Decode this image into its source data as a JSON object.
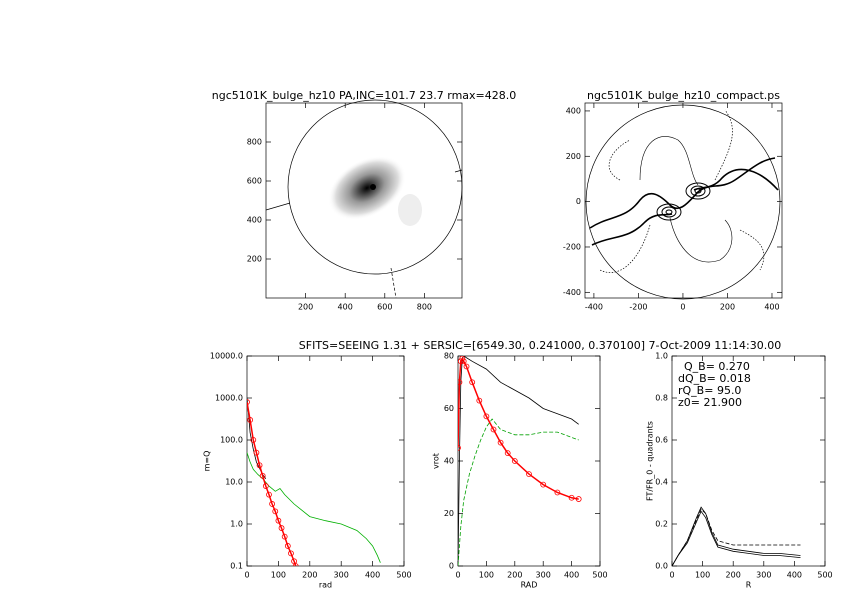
{
  "header": {
    "text": "SFITS=SEEING 1.31 + SERSIC=[6549.30, 0.241000, 0.370100]   7-Oct-2009 11:14:30.00"
  },
  "chart_data": [
    {
      "type": "image",
      "title": "ngc5101K_bulge_hz10 PA,INC=101.7 23.7 rmax=428.0",
      "xlim": [
        0,
        990
      ],
      "ylim": [
        0,
        1000
      ],
      "xticks": [
        200,
        400,
        600,
        800
      ],
      "yticks": [
        200,
        400,
        600,
        800
      ]
    },
    {
      "type": "contour",
      "title": "ngc5101K_bulge_hz10_compact.ps",
      "xlim": [
        -440,
        445
      ],
      "ylim": [
        -425,
        435
      ],
      "xticks": [
        -400,
        -200,
        0,
        200,
        400
      ],
      "yticks": [
        -400,
        -200,
        0,
        200,
        400
      ]
    },
    {
      "type": "line",
      "xlabel": "rad",
      "ylabel": "m=Q",
      "log_y": true,
      "xlim": [
        0,
        500
      ],
      "ylim": [
        0.1,
        10000
      ],
      "xticks": [
        0,
        100,
        200,
        300,
        400,
        500
      ],
      "yticks": [
        0.1,
        {
          "value": 1,
          "label": "1.0"
        },
        {
          "value": 10,
          "label": "10.0"
        },
        {
          "value": 100,
          "label": "100.0"
        },
        {
          "value": 1000,
          "label": "1000.0"
        },
        {
          "value": 10000,
          "label": "10000.0"
        }
      ],
      "series": [
        {
          "color": "#000000",
          "x": [
            0,
            5,
            10,
            20,
            30,
            50,
            60
          ],
          "values": [
            1000,
            400,
            150,
            60,
            30,
            15,
            12
          ]
        },
        {
          "color": "#00b000",
          "x": [
            0,
            10,
            20,
            35,
            50,
            70,
            90,
            105,
            120,
            150,
            200,
            250,
            300,
            350,
            380,
            400,
            415,
            425
          ],
          "values": [
            50,
            30,
            20,
            15,
            12,
            8,
            6,
            7,
            5,
            3,
            1.5,
            1.2,
            1.0,
            0.7,
            0.45,
            0.3,
            0.18,
            0.12
          ]
        },
        {
          "color": "#ff0000",
          "marker": "circle",
          "x": [
            0,
            10,
            20,
            30,
            40,
            50,
            60,
            70,
            80,
            90,
            100,
            110,
            120,
            130,
            140,
            150,
            155
          ],
          "values": [
            800,
            300,
            100,
            50,
            25,
            14,
            8,
            5,
            3,
            2,
            1.2,
            0.8,
            0.5,
            0.3,
            0.2,
            0.13,
            0.1
          ]
        }
      ]
    },
    {
      "type": "line",
      "xlabel": "RAD",
      "ylabel": "vrot",
      "xlim": [
        0,
        500
      ],
      "ylim": [
        0,
        80
      ],
      "xticks": [
        0,
        100,
        200,
        300,
        400,
        500
      ],
      "yticks": [
        0,
        20,
        40,
        60,
        80
      ],
      "series": [
        {
          "color": "#000000",
          "x": [
            0,
            5,
            10,
            15,
            20,
            50,
            100,
            150,
            200,
            250,
            300,
            350,
            400,
            425
          ],
          "values": [
            0,
            40,
            70,
            79,
            80,
            78,
            75,
            70,
            67,
            64,
            60,
            58,
            56,
            54
          ]
        },
        {
          "color": "#00a000",
          "dash": "dashed",
          "x": [
            0,
            10,
            20,
            40,
            60,
            80,
            100,
            120,
            150,
            200,
            250,
            300,
            350,
            400,
            425
          ],
          "values": [
            0,
            15,
            25,
            35,
            42,
            48,
            53,
            56,
            52,
            50,
            50,
            51,
            51,
            49,
            48
          ]
        },
        {
          "color": "#ff0000",
          "marker": "circle",
          "x": [
            0,
            5,
            10,
            15,
            20,
            30,
            50,
            75,
            100,
            125,
            150,
            175,
            200,
            250,
            300,
            350,
            400,
            425
          ],
          "values": [
            45,
            70,
            78,
            79,
            78,
            76,
            70,
            63,
            57,
            52,
            47,
            43,
            40,
            35,
            31,
            28,
            26,
            25.5
          ]
        }
      ]
    },
    {
      "type": "line",
      "xlabel": "R",
      "ylabel": "FT/FR_0 - quadrants",
      "xlim": [
        0,
        500
      ],
      "ylim": [
        0,
        1
      ],
      "xticks": [
        0,
        100,
        200,
        300,
        400,
        500
      ],
      "yticks": [
        {
          "value": 0,
          "label": "0.0"
        },
        0.2,
        0.4,
        0.6,
        0.8,
        {
          "value": 1,
          "label": "1.0"
        }
      ],
      "annotations": [
        "Q_B= 0.270",
        "dQ_B= 0.018",
        "rQ_B= 95.0",
        "z0= 21.900"
      ],
      "series": [
        {
          "color": "#000000",
          "x": [
            0,
            20,
            50,
            80,
            95,
            110,
            130,
            150,
            200,
            250,
            300,
            350,
            420
          ],
          "values": [
            0,
            0.05,
            0.12,
            0.23,
            0.28,
            0.25,
            0.16,
            0.1,
            0.08,
            0.07,
            0.06,
            0.06,
            0.05
          ]
        },
        {
          "color": "#000000",
          "x": [
            0,
            20,
            50,
            80,
            95,
            110,
            130,
            150,
            200,
            250,
            300,
            350,
            420
          ],
          "values": [
            0,
            0.05,
            0.11,
            0.21,
            0.26,
            0.23,
            0.15,
            0.09,
            0.07,
            0.06,
            0.05,
            0.05,
            0.04
          ]
        },
        {
          "color": "#000000",
          "dash": "dashed",
          "x": [
            0,
            20,
            50,
            80,
            95,
            110,
            130,
            150,
            200,
            250,
            300,
            350,
            420
          ],
          "values": [
            0,
            0.05,
            0.12,
            0.22,
            0.27,
            0.25,
            0.17,
            0.12,
            0.1,
            0.1,
            0.1,
            0.1,
            0.1
          ]
        }
      ]
    }
  ]
}
